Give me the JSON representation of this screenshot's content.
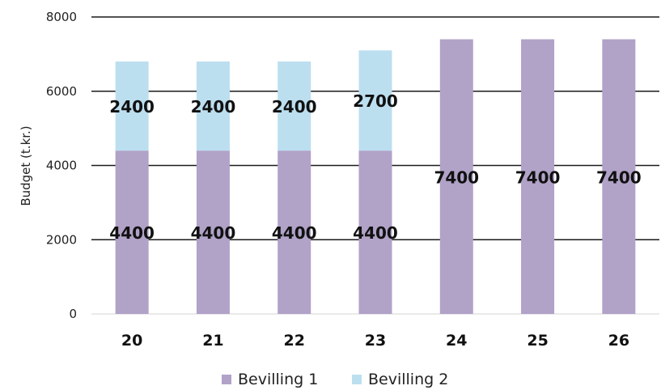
{
  "chart_data": {
    "type": "bar",
    "stacked": true,
    "categories": [
      "20",
      "21",
      "22",
      "23",
      "24",
      "25",
      "26"
    ],
    "series": [
      {
        "name": "Bevilling 1",
        "values": [
          4400,
          4400,
          4400,
          4400,
          7400,
          7400,
          7400
        ],
        "color": "#b1a2c8"
      },
      {
        "name": "Bevilling 2",
        "values": [
          2400,
          2400,
          2400,
          2700,
          0,
          0,
          0
        ],
        "color": "#bcdff0"
      }
    ],
    "title": "",
    "xlabel": "",
    "ylabel": "Budget (t.kr.)",
    "ylim": [
      0,
      8000
    ],
    "yticks": [
      0,
      2000,
      4000,
      6000,
      8000
    ],
    "grid": true,
    "data_labels": true,
    "legend_position": "bottom"
  }
}
